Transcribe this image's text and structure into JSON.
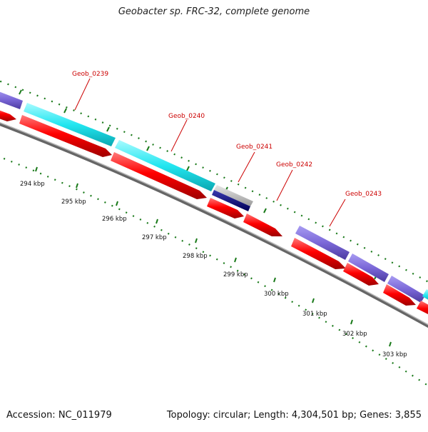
{
  "title": "Geobacter sp. FRC-32, complete genome",
  "footer": {
    "accession": "Accession: NC_011979",
    "summary": "Topology: circular; Length: 4,304,501 bp; Genes: 3,855"
  },
  "ruler": {
    "labels": [
      "294 kbp",
      "295 kbp",
      "296 kbp",
      "297 kbp",
      "298 kbp",
      "299 kbp",
      "300 kbp",
      "301 kbp",
      "302 kbp",
      "303 kbp"
    ],
    "unit": "kbp"
  },
  "genes": [
    {
      "id": "Geob_0239"
    },
    {
      "id": "Geob_0240"
    },
    {
      "id": "Geob_0241"
    },
    {
      "id": "Geob_0242"
    },
    {
      "id": "Geob_0243"
    }
  ],
  "colors": {
    "cog_purple": "#7b68d8",
    "cog_cyan": "#22e6f0",
    "cog_navy": "#0a0a80",
    "cog_gray": "#bbbbbb",
    "cds": "#ff0000",
    "label": "#cc0000",
    "tick": "#1a7a1a",
    "backbone": "#777777"
  }
}
